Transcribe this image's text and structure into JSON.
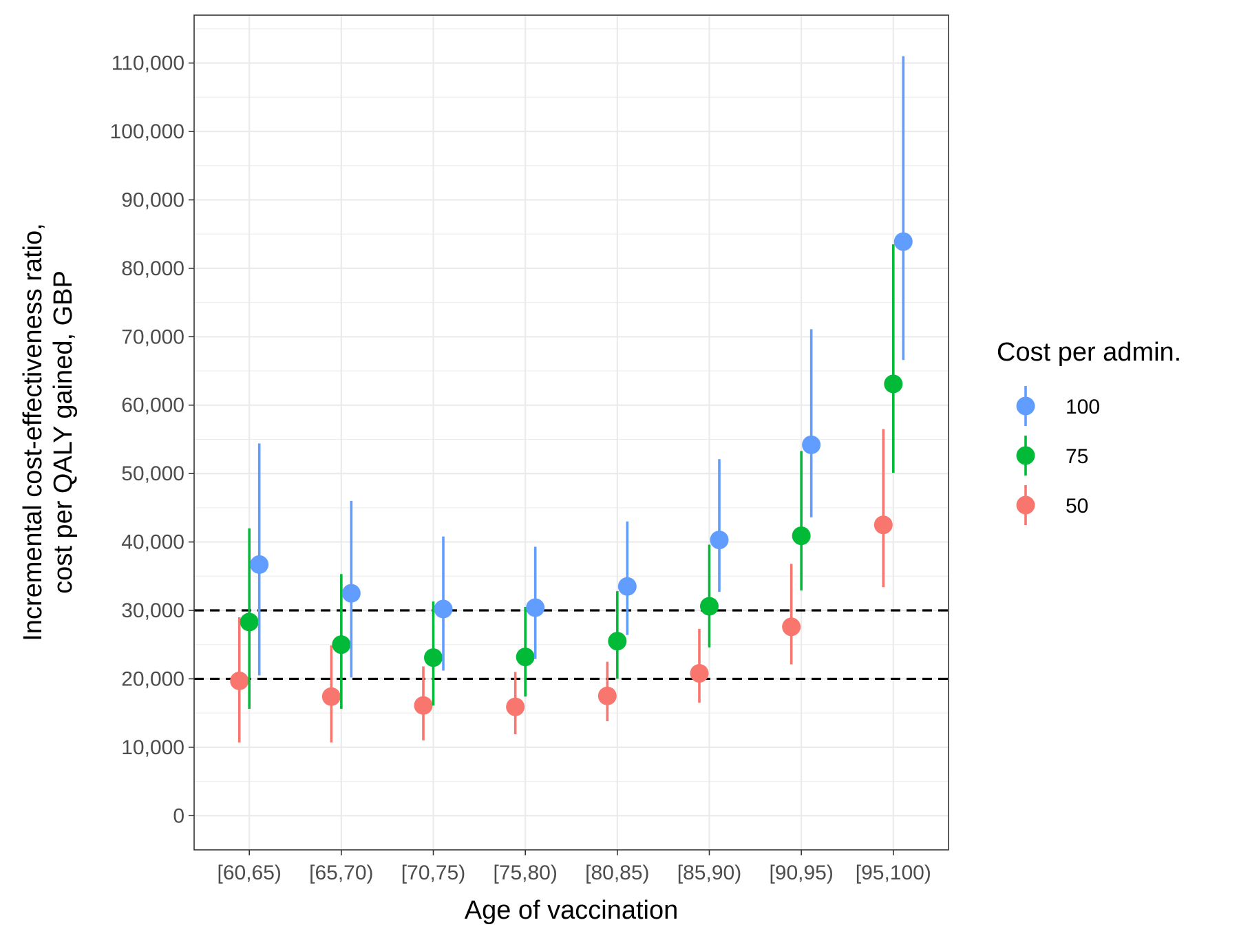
{
  "chart_data": {
    "type": "scatter",
    "subtype": "point-range",
    "xlabel": "Age of vaccination",
    "ylabel_lines": [
      "Incremental cost-effectiveness ratio,",
      "cost per QALY gained, GBP"
    ],
    "categories": [
      "[60,65)",
      "[65,70)",
      "[70,75)",
      "[75,80)",
      "[80,85)",
      "[85,90)",
      "[90,95)",
      "[95,100)"
    ],
    "ylim": [
      -5000,
      117000
    ],
    "yticks": [
      0,
      10000,
      20000,
      30000,
      40000,
      50000,
      60000,
      70000,
      80000,
      90000,
      100000,
      110000
    ],
    "ytick_labels": [
      "0",
      "10,000",
      "20,000",
      "30,000",
      "40,000",
      "50,000",
      "60,000",
      "70,000",
      "80,000",
      "90,000",
      "100,000",
      "110,000"
    ],
    "reference_lines": [
      20000,
      30000
    ],
    "grid": true,
    "legend": {
      "title": "Cost per admin.",
      "position": "right",
      "entries": [
        "100",
        "75",
        "50"
      ]
    },
    "series": [
      {
        "name": "50",
        "color": "#F8766D",
        "values": [
          19700,
          17400,
          16100,
          15900,
          17500,
          20800,
          27600,
          42500
        ],
        "lower": [
          10700,
          10700,
          11000,
          11900,
          13800,
          16500,
          22100,
          33400
        ],
        "upper": [
          29000,
          24900,
          21800,
          21000,
          22500,
          27300,
          36800,
          56500
        ]
      },
      {
        "name": "75",
        "color": "#00BA38",
        "values": [
          28300,
          25000,
          23100,
          23200,
          25500,
          30600,
          40900,
          63100
        ],
        "lower": [
          15600,
          15600,
          16100,
          17400,
          20000,
          24600,
          32900,
          50100
        ],
        "upper": [
          42000,
          35300,
          31300,
          30500,
          32800,
          39600,
          53300,
          83500
        ]
      },
      {
        "name": "100",
        "color": "#619CFF",
        "values": [
          36700,
          32500,
          30200,
          30400,
          33500,
          40300,
          54200,
          83900
        ],
        "lower": [
          20500,
          20200,
          21200,
          22900,
          26400,
          32700,
          43600,
          66600
        ],
        "upper": [
          54400,
          46000,
          40800,
          39300,
          43000,
          52100,
          71100,
          111000
        ]
      }
    ]
  }
}
